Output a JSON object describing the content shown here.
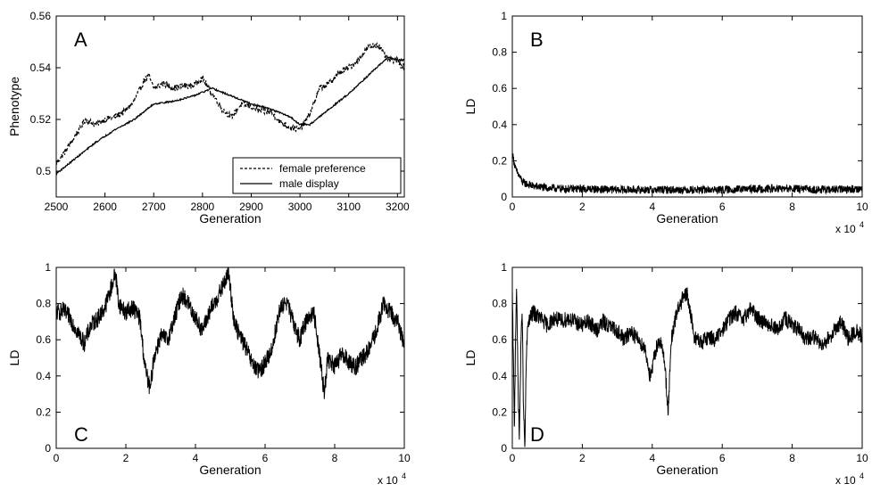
{
  "chart_data": [
    {
      "id": "A",
      "type": "line",
      "panel_label": "A",
      "xlabel": "Generation",
      "ylabel": "Phenotype",
      "xlim": [
        2500,
        3214
      ],
      "ylim": [
        0.49,
        0.56
      ],
      "xticks": [
        2500,
        2600,
        2700,
        2800,
        2900,
        3000,
        3100,
        3200
      ],
      "yticks": [
        0.5,
        0.52,
        0.54,
        0.56
      ],
      "ytick_labels": [
        "0.5",
        "0.52",
        "0.54",
        "0.56"
      ],
      "legend": {
        "position": "bottom-right",
        "entries": [
          {
            "label": "female preference",
            "style": "dashed"
          },
          {
            "label": "male display",
            "style": "solid"
          }
        ]
      },
      "series": [
        {
          "name": "female preference",
          "style": "dashed",
          "noise": 0.0012,
          "x": [
            2500,
            2520,
            2540,
            2560,
            2580,
            2600,
            2620,
            2640,
            2660,
            2680,
            2690,
            2700,
            2720,
            2740,
            2760,
            2780,
            2800,
            2820,
            2840,
            2860,
            2880,
            2900,
            2920,
            2940,
            2960,
            2980,
            3000,
            3020,
            3040,
            3060,
            3080,
            3100,
            3120,
            3140,
            3160,
            3180,
            3200,
            3214
          ],
          "y": [
            0.503,
            0.508,
            0.514,
            0.52,
            0.518,
            0.52,
            0.521,
            0.523,
            0.527,
            0.535,
            0.537,
            0.532,
            0.534,
            0.532,
            0.533,
            0.533,
            0.536,
            0.53,
            0.524,
            0.521,
            0.526,
            0.525,
            0.523,
            0.523,
            0.519,
            0.517,
            0.516,
            0.522,
            0.532,
            0.534,
            0.538,
            0.54,
            0.543,
            0.548,
            0.549,
            0.543,
            0.543,
            0.54
          ]
        },
        {
          "name": "male display",
          "style": "solid",
          "noise": 0.0003,
          "x": [
            2500,
            2540,
            2580,
            2620,
            2660,
            2700,
            2740,
            2780,
            2820,
            2860,
            2900,
            2940,
            2980,
            3000,
            3020,
            3060,
            3100,
            3140,
            3180,
            3200,
            3214
          ],
          "y": [
            0.499,
            0.505,
            0.511,
            0.516,
            0.52,
            0.526,
            0.527,
            0.529,
            0.532,
            0.529,
            0.526,
            0.524,
            0.521,
            0.518,
            0.518,
            0.524,
            0.53,
            0.537,
            0.544,
            0.543,
            0.543
          ]
        }
      ]
    },
    {
      "id": "B",
      "type": "line",
      "panel_label": "B",
      "xlabel": "Generation",
      "ylabel": "LD",
      "xlim": [
        0,
        100000
      ],
      "ylim": [
        0,
        1
      ],
      "xticks": [
        0,
        20000,
        40000,
        60000,
        80000,
        100000
      ],
      "xtick_labels": [
        "0",
        "2",
        "4",
        "6",
        "8",
        "10"
      ],
      "x_multiplier_label": {
        "base": "x 10",
        "exponent": "4"
      },
      "yticks": [
        0,
        0.2,
        0.4,
        0.6,
        0.8,
        1
      ],
      "ytick_labels": [
        "0",
        "0.2",
        "0.4",
        "0.6",
        "0.8",
        "1"
      ],
      "series": [
        {
          "name": "",
          "style": "solid",
          "noise": 0.022,
          "x": [
            0,
            1000,
            3000,
            6000,
            10000,
            15000,
            20000,
            30000,
            40000,
            50000,
            60000,
            70000,
            80000,
            90000,
            100000
          ],
          "y": [
            0.24,
            0.15,
            0.08,
            0.06,
            0.05,
            0.045,
            0.045,
            0.04,
            0.04,
            0.04,
            0.04,
            0.045,
            0.045,
            0.04,
            0.045
          ]
        }
      ]
    },
    {
      "id": "C",
      "type": "line",
      "panel_label": "C",
      "xlabel": "Generation",
      "ylabel": "LD",
      "xlim": [
        0,
        100000
      ],
      "ylim": [
        0,
        1
      ],
      "xticks": [
        0,
        20000,
        40000,
        60000,
        80000,
        100000
      ],
      "xtick_labels": [
        "0",
        "2",
        "4",
        "6",
        "8",
        "10"
      ],
      "x_multiplier_label": {
        "base": "x 10",
        "exponent": "4"
      },
      "yticks": [
        0,
        0.2,
        0.4,
        0.6,
        0.8,
        1
      ],
      "ytick_labels": [
        "0",
        "0.2",
        "0.4",
        "0.6",
        "0.8",
        "1"
      ],
      "series": [
        {
          "name": "",
          "style": "solid",
          "noise": 0.05,
          "x": [
            0,
            2000,
            4000,
            6000,
            8000,
            10000,
            12000,
            14000,
            16000,
            17000,
            18000,
            20000,
            22000,
            24000,
            25500,
            27000,
            28000,
            30000,
            32000,
            34000,
            36000,
            38000,
            40000,
            42000,
            44000,
            46000,
            48000,
            49500,
            51000,
            52000,
            54000,
            56000,
            58000,
            60000,
            62000,
            64000,
            66000,
            68000,
            70000,
            72000,
            74000,
            75500,
            77000,
            78000,
            80000,
            82000,
            84000,
            86000,
            88000,
            90000,
            92000,
            94000,
            96000,
            98000,
            100000
          ],
          "y": [
            0.75,
            0.76,
            0.72,
            0.65,
            0.58,
            0.68,
            0.72,
            0.78,
            0.9,
            0.97,
            0.8,
            0.75,
            0.78,
            0.72,
            0.45,
            0.32,
            0.5,
            0.62,
            0.6,
            0.72,
            0.85,
            0.8,
            0.72,
            0.65,
            0.75,
            0.82,
            0.9,
            0.97,
            0.72,
            0.65,
            0.58,
            0.48,
            0.42,
            0.47,
            0.55,
            0.75,
            0.82,
            0.7,
            0.6,
            0.72,
            0.75,
            0.55,
            0.3,
            0.5,
            0.45,
            0.52,
            0.48,
            0.45,
            0.5,
            0.55,
            0.65,
            0.8,
            0.75,
            0.7,
            0.58
          ]
        }
      ]
    },
    {
      "id": "D",
      "type": "line",
      "panel_label": "D",
      "xlabel": "Generation",
      "ylabel": "LD",
      "xlim": [
        0,
        100000
      ],
      "ylim": [
        0,
        1
      ],
      "xticks": [
        0,
        20000,
        40000,
        60000,
        80000,
        100000
      ],
      "xtick_labels": [
        "0",
        "2",
        "4",
        "6",
        "8",
        "10"
      ],
      "x_multiplier_label": {
        "base": "x 10",
        "exponent": "4"
      },
      "yticks": [
        0,
        0.2,
        0.4,
        0.6,
        0.8,
        1
      ],
      "ytick_labels": [
        "0",
        "0.2",
        "0.4",
        "0.6",
        "0.8",
        "1"
      ],
      "series": [
        {
          "name": "",
          "style": "solid",
          "noise": 0.045,
          "x": [
            0,
            300,
            600,
            900,
            1200,
            1600,
            2000,
            2400,
            2800,
            3200,
            3600,
            4000,
            4500,
            5000,
            6000,
            8000,
            10000,
            12000,
            14000,
            16000,
            18000,
            20000,
            22000,
            24000,
            26000,
            28000,
            30000,
            32000,
            34000,
            36000,
            38000,
            39500,
            41000,
            42000,
            43500,
            44500,
            45500,
            47000,
            48500,
            50000,
            52000,
            54000,
            56000,
            58000,
            60000,
            62000,
            64000,
            66000,
            68000,
            70000,
            72000,
            74000,
            76000,
            78000,
            80000,
            82000,
            84000,
            86000,
            88000,
            90000,
            92000,
            94000,
            96000,
            98000,
            100000
          ],
          "y": [
            0.85,
            0.5,
            0.1,
            0.6,
            0.9,
            0.4,
            0.05,
            0.5,
            0.8,
            0.2,
            0.0,
            0.5,
            0.7,
            0.72,
            0.75,
            0.72,
            0.68,
            0.72,
            0.7,
            0.72,
            0.7,
            0.68,
            0.7,
            0.65,
            0.7,
            0.67,
            0.65,
            0.6,
            0.65,
            0.6,
            0.55,
            0.38,
            0.55,
            0.6,
            0.5,
            0.2,
            0.6,
            0.75,
            0.82,
            0.85,
            0.62,
            0.58,
            0.62,
            0.6,
            0.65,
            0.72,
            0.75,
            0.7,
            0.78,
            0.72,
            0.7,
            0.68,
            0.65,
            0.72,
            0.68,
            0.65,
            0.6,
            0.62,
            0.58,
            0.6,
            0.65,
            0.7,
            0.6,
            0.65,
            0.62
          ]
        }
      ]
    }
  ]
}
